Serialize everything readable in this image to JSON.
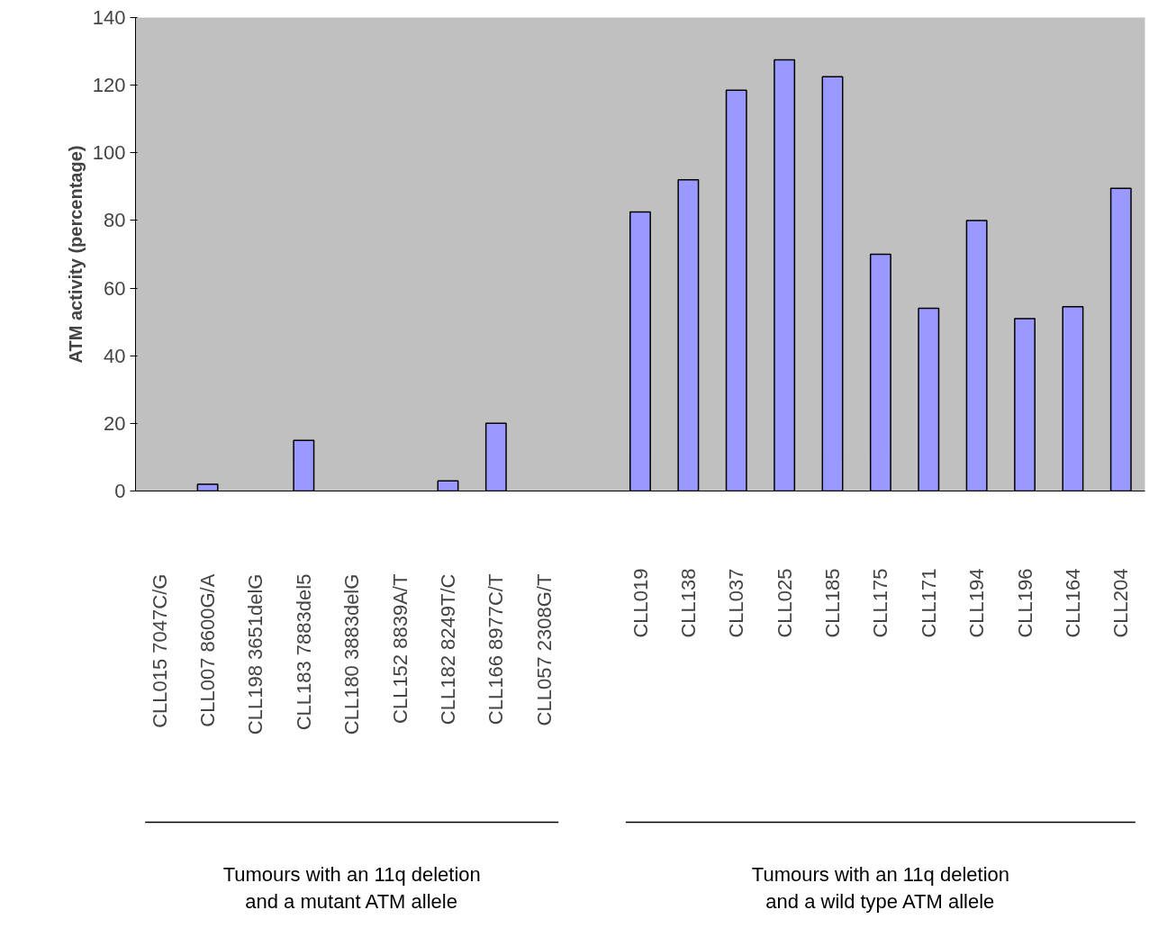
{
  "chart_data": {
    "type": "bar",
    "ylabel": "ATM activity (percentage)",
    "categories": [
      "CLL015  7047C/G",
      "CLL007  8600G/A",
      "CLL198  3651delG",
      "CLL183  7883del5",
      "CLL180  3883delG",
      "CLL152  8839A/T",
      "CLL182  8249T/C",
      "CLL166  8977C/T",
      "CLL057  2308G/T",
      null,
      "CLL019",
      "CLL138",
      "CLL037",
      "CLL025",
      "CLL185",
      "CLL175",
      "CLL171",
      "CLL194",
      "CLL196",
      "CLL164",
      "CLL204"
    ],
    "values": [
      0,
      2,
      0,
      15,
      0,
      0,
      3,
      20,
      0,
      null,
      82.5,
      92,
      118.5,
      127.5,
      122.5,
      70,
      54,
      80,
      51,
      54.5,
      89.5
    ],
    "color": "#9999ff",
    "ylim": [
      0,
      140
    ],
    "yticks": [
      0,
      20,
      40,
      60,
      80,
      100,
      120,
      140
    ],
    "grid": false,
    "annotations": [
      "Tumours with an 11q deletion\nand a mutant ATM allele",
      "Tumours with an 11q deletion\nand a wild type ATM allele"
    ]
  }
}
